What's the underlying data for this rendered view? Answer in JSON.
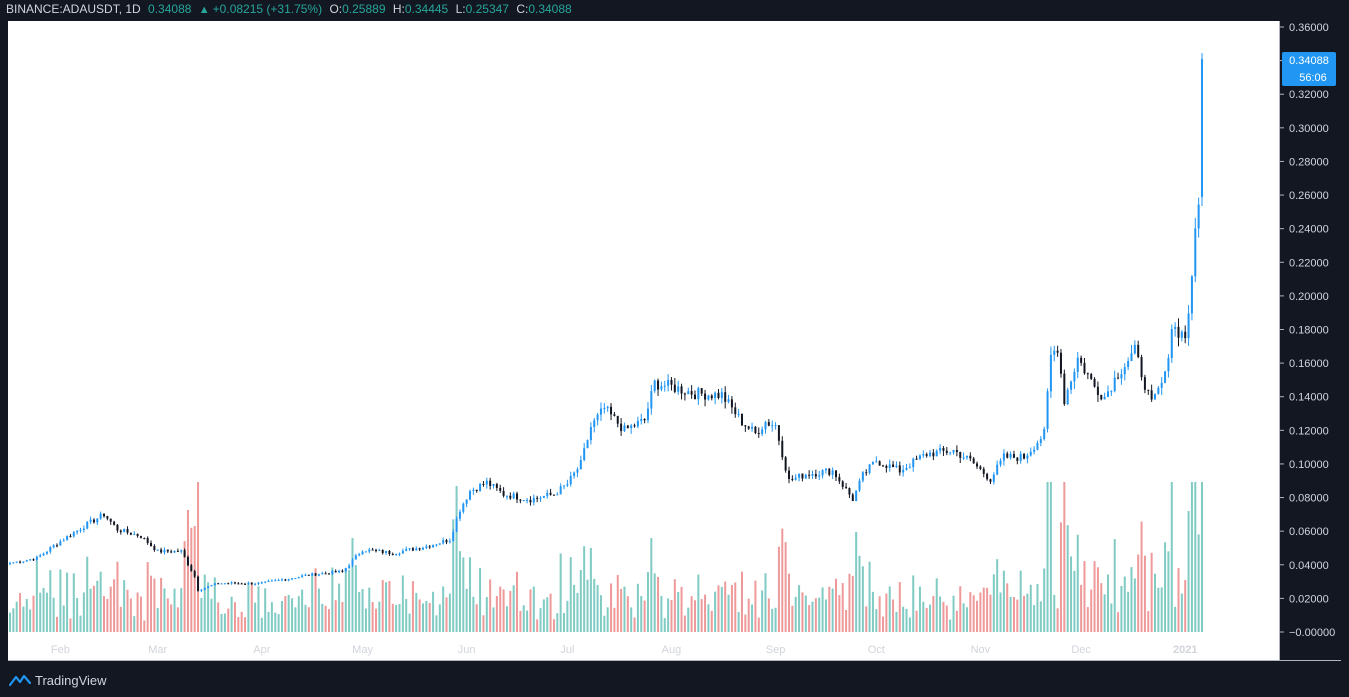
{
  "header": {
    "symbol": "BINANCE:ADAUSDT, 1D",
    "last": "0.34088",
    "change": "+0.08215 (+31.75%)",
    "o_label": "O:",
    "o_value": "0.25889",
    "h_label": "H:",
    "h_value": "0.34445",
    "l_label": "L:",
    "l_value": "0.25347",
    "c_label": "C:",
    "c_value": "0.34088",
    "change_color": "#26a69a"
  },
  "brand": {
    "name": "TradingView",
    "icon": "tradingview-logo-icon"
  },
  "price_badge": {
    "value": "0.34088",
    "countdown": "56:06",
    "color": "#2196f3"
  },
  "chart_data": {
    "type": "candlestick",
    "title": "BINANCE:ADAUSDT, 1D",
    "ylim": [
      0.0,
      0.36
    ],
    "ytick_values": [
      0.0,
      0.02,
      0.04,
      0.06,
      0.08,
      0.1,
      0.12,
      0.14,
      0.16,
      0.18,
      0.2,
      0.22,
      0.24,
      0.26,
      0.28,
      0.3,
      0.32,
      0.34,
      0.36
    ],
    "ytick_labels": [
      "−0.00000",
      "0.02000",
      "0.04000",
      "0.06000",
      "0.08000",
      "0.10000",
      "0.12000",
      "0.14000",
      "0.16000",
      "0.18000",
      "0.20000",
      "0.22000",
      "0.24000",
      "0.26000",
      "0.28000",
      "0.30000",
      "0.32000",
      "0.34000",
      "0.36000"
    ],
    "x_start": "2020-01-17",
    "x_end": "2021-01-06",
    "xticks": [
      {
        "label": "Feb",
        "date": "2020-02-01"
      },
      {
        "label": "Mar",
        "date": "2020-03-01"
      },
      {
        "label": "Apr",
        "date": "2020-04-01"
      },
      {
        "label": "May",
        "date": "2020-05-01"
      },
      {
        "label": "Jun",
        "date": "2020-06-01"
      },
      {
        "label": "Jul",
        "date": "2020-07-01"
      },
      {
        "label": "Aug",
        "date": "2020-08-01"
      },
      {
        "label": "Sep",
        "date": "2020-09-01"
      },
      {
        "label": "Oct",
        "date": "2020-10-01"
      },
      {
        "label": "Nov",
        "date": "2020-11-01"
      },
      {
        "label": "Dec",
        "date": "2020-12-01"
      },
      {
        "label": "2021",
        "date": "2021-01-01"
      }
    ],
    "close_anchors": [
      [
        "2020-01-17",
        0.041
      ],
      [
        "2020-01-25",
        0.044
      ],
      [
        "2020-02-01",
        0.054
      ],
      [
        "2020-02-08",
        0.063
      ],
      [
        "2020-02-14",
        0.07
      ],
      [
        "2020-02-18",
        0.061
      ],
      [
        "2020-02-25",
        0.057
      ],
      [
        "2020-03-01",
        0.048
      ],
      [
        "2020-03-08",
        0.048
      ],
      [
        "2020-03-12",
        0.033
      ],
      [
        "2020-03-13",
        0.025
      ],
      [
        "2020-03-19",
        0.029
      ],
      [
        "2020-04-01",
        0.029
      ],
      [
        "2020-04-15",
        0.034
      ],
      [
        "2020-04-25",
        0.036
      ],
      [
        "2020-05-01",
        0.049
      ],
      [
        "2020-05-10",
        0.047
      ],
      [
        "2020-05-20",
        0.051
      ],
      [
        "2020-05-27",
        0.055
      ],
      [
        "2020-05-30",
        0.073
      ],
      [
        "2020-06-02",
        0.084
      ],
      [
        "2020-06-07",
        0.089
      ],
      [
        "2020-06-12",
        0.082
      ],
      [
        "2020-06-20",
        0.079
      ],
      [
        "2020-06-27",
        0.082
      ],
      [
        "2020-07-01",
        0.088
      ],
      [
        "2020-07-05",
        0.1
      ],
      [
        "2020-07-08",
        0.122
      ],
      [
        "2020-07-12",
        0.133
      ],
      [
        "2020-07-18",
        0.12
      ],
      [
        "2020-07-24",
        0.126
      ],
      [
        "2020-07-27",
        0.148
      ],
      [
        "2020-08-01",
        0.146
      ],
      [
        "2020-08-08",
        0.142
      ],
      [
        "2020-08-16",
        0.141
      ],
      [
        "2020-08-22",
        0.125
      ],
      [
        "2020-08-26",
        0.118
      ],
      [
        "2020-08-29",
        0.125
      ],
      [
        "2020-09-01",
        0.123
      ],
      [
        "2020-09-05",
        0.09
      ],
      [
        "2020-09-10",
        0.094
      ],
      [
        "2020-09-18",
        0.096
      ],
      [
        "2020-09-24",
        0.079
      ],
      [
        "2020-09-27",
        0.093
      ],
      [
        "2020-10-01",
        0.102
      ],
      [
        "2020-10-08",
        0.096
      ],
      [
        "2020-10-16",
        0.106
      ],
      [
        "2020-10-24",
        0.108
      ],
      [
        "2020-10-29",
        0.102
      ],
      [
        "2020-11-04",
        0.091
      ],
      [
        "2020-11-08",
        0.104
      ],
      [
        "2020-11-14",
        0.104
      ],
      [
        "2020-11-20",
        0.118
      ],
      [
        "2020-11-22",
        0.164
      ],
      [
        "2020-11-24",
        0.17
      ],
      [
        "2020-11-26",
        0.138
      ],
      [
        "2020-11-30",
        0.163
      ],
      [
        "2020-12-05",
        0.146
      ],
      [
        "2020-12-08",
        0.14
      ],
      [
        "2020-12-12",
        0.154
      ],
      [
        "2020-12-17",
        0.167
      ],
      [
        "2020-12-22",
        0.135
      ],
      [
        "2020-12-26",
        0.152
      ],
      [
        "2020-12-28",
        0.182
      ],
      [
        "2021-01-01",
        0.176
      ],
      [
        "2021-01-03",
        0.207
      ],
      [
        "2021-01-04",
        0.239
      ],
      [
        "2021-01-05",
        0.259
      ],
      [
        "2021-01-06",
        0.34088
      ]
    ],
    "last_candle": {
      "date": "2021-01-06",
      "open": 0.25889,
      "high": 0.34445,
      "low": 0.25347,
      "close": 0.34088
    },
    "volume_panel": "relative volume bars along bottom of price pane",
    "colors": {
      "up": "#26a69a",
      "down": "#ef5350",
      "up_body_line": "#2196f3",
      "down_body": "#131722",
      "up_volume": "#80cbc4",
      "down_volume": "#ef9a9a",
      "last_price": "#2196f3"
    },
    "grid": false,
    "background": "#ffffff"
  }
}
